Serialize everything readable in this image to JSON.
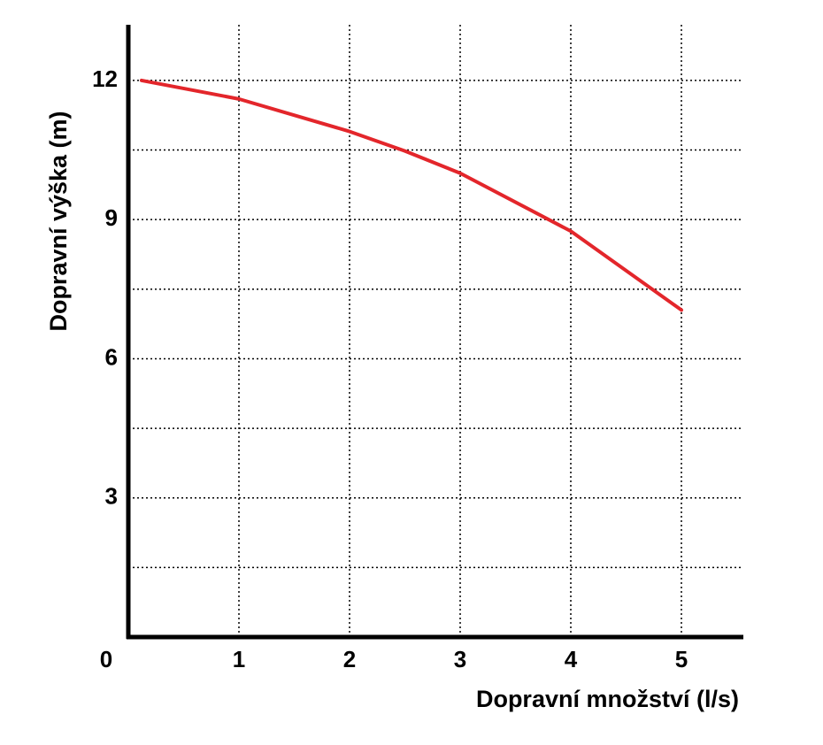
{
  "chart_data": {
    "type": "line",
    "x_label": "Dopravní množství (l/s)",
    "y_label": "Dopravní výška (m)",
    "xlim": [
      0,
      5.56
    ],
    "xticks": [
      0,
      1,
      2,
      3,
      4,
      5
    ],
    "xgrid": [
      1,
      2,
      3,
      4,
      5
    ],
    "ylim": [
      0,
      13.2
    ],
    "yticks": [
      3,
      6,
      9,
      12
    ],
    "ygrid": [
      1.5,
      3,
      4.5,
      6,
      7.5,
      9,
      10.5,
      12
    ],
    "grid": true,
    "series": [
      {
        "color": "#e3262b",
        "x": [
          0.12,
          1,
          2,
          2.5,
          3,
          4,
          5
        ],
        "values": [
          12,
          11.6,
          10.9,
          10.48,
          10,
          8.75,
          7.05
        ]
      }
    ]
  }
}
